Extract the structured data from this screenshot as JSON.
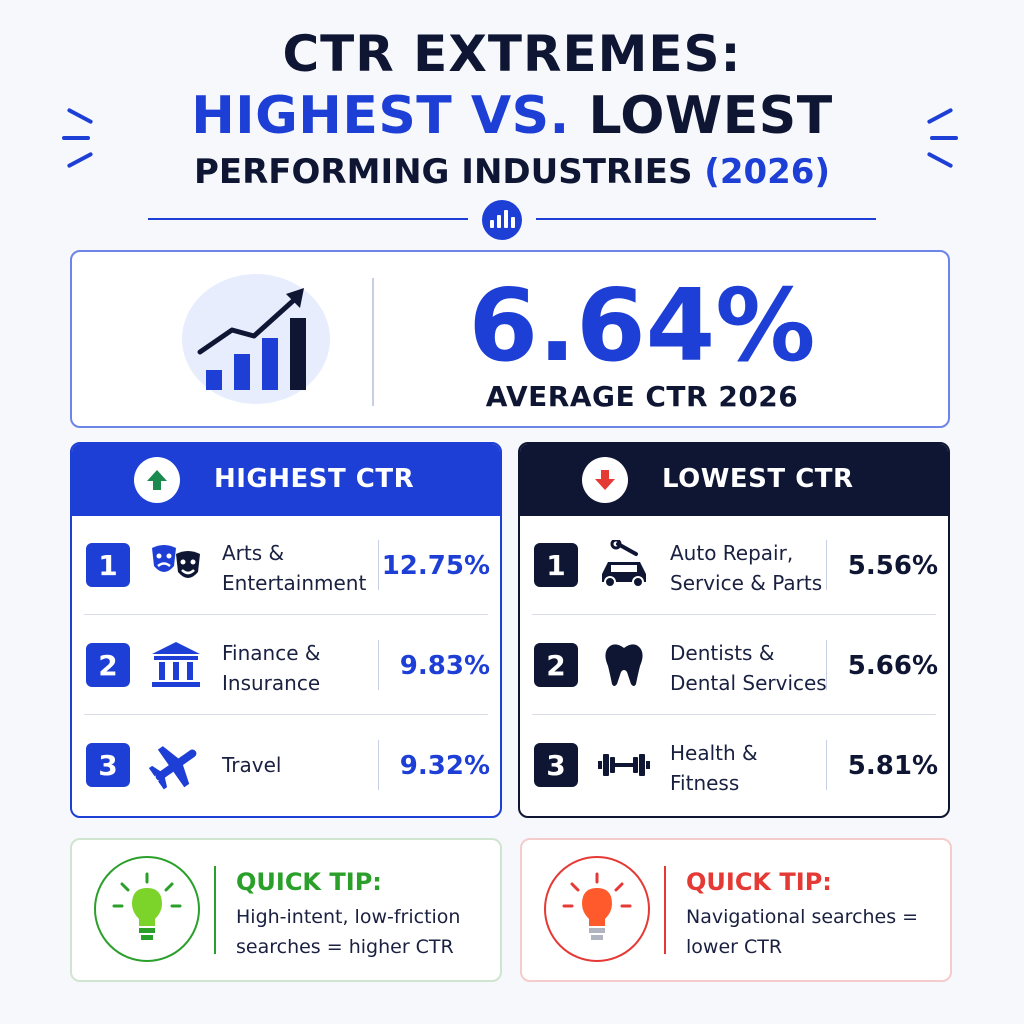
{
  "header": {
    "line1": "CTR EXTREMES:",
    "line2_blue": "HIGHEST VS.",
    "line2_dark": "LOWEST",
    "line3_dark": "PERFORMING INDUSTRIES",
    "line3_blue": "(2026)"
  },
  "summary": {
    "value": "6.64%",
    "label": "AVERAGE CTR 2026",
    "icon": "bar-chart-trend-icon"
  },
  "highest": {
    "title": "HIGHEST CTR",
    "icon": "arrow-up-icon",
    "items": [
      {
        "rank": "1",
        "name_l1": "Arts &",
        "name_l2": "Entertainment",
        "value": "12.75%",
        "icon": "theater-masks-icon"
      },
      {
        "rank": "2",
        "name_l1": "Finance &",
        "name_l2": "Insurance",
        "value": "9.83%",
        "icon": "bank-icon"
      },
      {
        "rank": "3",
        "name_l1": "Travel",
        "name_l2": "",
        "value": "9.32%",
        "icon": "airplane-icon"
      }
    ]
  },
  "lowest": {
    "title": "LOWEST CTR",
    "icon": "arrow-down-icon",
    "items": [
      {
        "rank": "1",
        "name_l1": "Auto Repair,",
        "name_l2": "Service & Parts",
        "value": "5.56%",
        "icon": "car-wrench-icon"
      },
      {
        "rank": "2",
        "name_l1": "Dentists &",
        "name_l2": "Dental Services",
        "value": "5.66%",
        "icon": "tooth-icon"
      },
      {
        "rank": "3",
        "name_l1": "Health &",
        "name_l2": "Fitness",
        "value": "5.81%",
        "icon": "dumbbell-icon"
      }
    ]
  },
  "tips": [
    {
      "title": "QUICK TIP:",
      "line1": "High-intent, low-friction",
      "line2": "searches = higher CTR",
      "color": "#2aa02a",
      "icon": "lightbulb-icon"
    },
    {
      "title": "QUICK TIP:",
      "line1": "Navigational searches =",
      "line2": "lower CTR",
      "color": "#e53935",
      "icon": "lightbulb-icon"
    }
  ],
  "colors": {
    "blue": "#1d3fd6",
    "navy": "#0f1633",
    "green": "#2aa02a",
    "red": "#e53935"
  }
}
